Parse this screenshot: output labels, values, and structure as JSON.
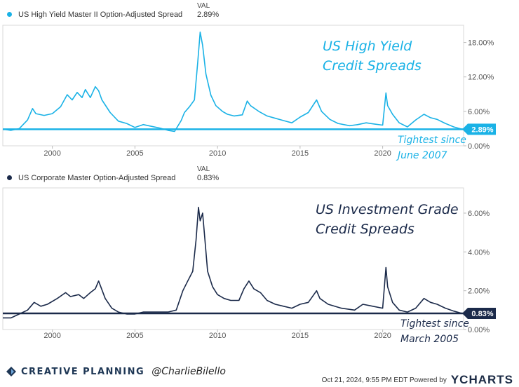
{
  "chart_data": [
    {
      "type": "line",
      "series_name": "US High Yield Master II Option-Adjusted Spread",
      "val_header": "VAL",
      "current_value": "2.89%",
      "current_value_num": 2.89,
      "color": "#1ab2e6",
      "annotation_title": [
        "US High Yield",
        "Credit Spreads"
      ],
      "annotation_note": [
        "Tightest since",
        "June 2007"
      ],
      "x_ticks": [
        "2000",
        "2005",
        "2010",
        "2015",
        "2020"
      ],
      "y_ticks": [
        "18.00%",
        "12.00%",
        "6.00%",
        "0.00%"
      ],
      "y_tick_values": [
        18,
        12,
        6,
        0
      ],
      "ylim": [
        0,
        21
      ],
      "xlim": [
        1997.0,
        2024.9
      ],
      "x": [
        1997.0,
        1997.5,
        1998.0,
        1998.5,
        1998.8,
        1999.0,
        1999.5,
        2000.0,
        2000.5,
        2000.9,
        2001.2,
        2001.5,
        2001.8,
        2002.0,
        2002.3,
        2002.6,
        2002.8,
        2003.0,
        2003.5,
        2004.0,
        2004.5,
        2005.0,
        2005.5,
        2006.0,
        2006.5,
        2007.0,
        2007.4,
        2007.8,
        2008.0,
        2008.3,
        2008.6,
        2008.8,
        2008.95,
        2009.1,
        2009.3,
        2009.6,
        2009.9,
        2010.3,
        2010.6,
        2011.0,
        2011.5,
        2011.8,
        2012.0,
        2012.5,
        2013.0,
        2013.5,
        2014.0,
        2014.5,
        2015.0,
        2015.5,
        2016.0,
        2016.3,
        2016.8,
        2017.3,
        2018.0,
        2018.5,
        2019.0,
        2019.5,
        2020.0,
        2020.2,
        2020.3,
        2020.6,
        2021.0,
        2021.5,
        2022.0,
        2022.5,
        2022.9,
        2023.3,
        2023.8,
        2024.3,
        2024.8
      ],
      "y": [
        2.9,
        2.7,
        3.0,
        4.5,
        6.5,
        5.6,
        5.3,
        5.6,
        6.8,
        8.9,
        8.0,
        9.3,
        8.4,
        9.8,
        8.4,
        10.3,
        9.6,
        8.0,
        5.8,
        4.3,
        3.9,
        3.2,
        3.7,
        3.4,
        3.1,
        2.7,
        2.5,
        4.4,
        5.8,
        6.8,
        8.0,
        14.5,
        19.8,
        17.5,
        12.5,
        8.8,
        7.0,
        6.0,
        5.5,
        5.2,
        5.4,
        7.8,
        7.0,
        6.0,
        5.2,
        4.8,
        4.4,
        4.0,
        5.0,
        5.8,
        8.0,
        6.0,
        4.6,
        3.9,
        3.5,
        3.7,
        4.0,
        3.8,
        3.6,
        9.2,
        7.0,
        5.5,
        4.0,
        3.3,
        4.5,
        5.5,
        4.9,
        4.6,
        3.9,
        3.3,
        2.89
      ]
    },
    {
      "type": "line",
      "series_name": "US Corporate Master Option-Adjusted Spread",
      "val_header": "VAL",
      "current_value": "0.83%",
      "current_value_num": 0.83,
      "color": "#1b2a4a",
      "annotation_title": [
        "US Investment Grade",
        "Credit Spreads"
      ],
      "annotation_note": [
        "Tightest since",
        "March 2005"
      ],
      "x_ticks": [
        "2000",
        "2005",
        "2010",
        "2015",
        "2020"
      ],
      "y_ticks": [
        "6.00%",
        "4.00%",
        "2.00%",
        "0.00%"
      ],
      "y_tick_values": [
        6,
        4,
        2,
        0
      ],
      "ylim": [
        0,
        7.3
      ],
      "xlim": [
        1997.0,
        2024.9
      ],
      "x": [
        1997.0,
        1997.5,
        1998.0,
        1998.5,
        1998.9,
        1999.3,
        1999.7,
        2000.3,
        2000.8,
        2001.1,
        2001.6,
        2001.9,
        2002.3,
        2002.6,
        2002.8,
        2003.2,
        2003.6,
        2004.0,
        2004.5,
        2005.0,
        2005.5,
        2006.0,
        2006.5,
        2007.0,
        2007.5,
        2007.9,
        2008.2,
        2008.5,
        2008.7,
        2008.85,
        2008.95,
        2009.1,
        2009.2,
        2009.4,
        2009.7,
        2010.0,
        2010.4,
        2010.8,
        2011.3,
        2011.6,
        2011.9,
        2012.2,
        2012.6,
        2013.0,
        2013.5,
        2014.0,
        2014.5,
        2015.0,
        2015.5,
        2016.0,
        2016.2,
        2016.7,
        2017.5,
        2018.3,
        2018.8,
        2019.4,
        2020.0,
        2020.2,
        2020.3,
        2020.6,
        2021.0,
        2021.5,
        2022.0,
        2022.5,
        2022.9,
        2023.3,
        2023.8,
        2024.3,
        2024.8
      ],
      "y": [
        0.6,
        0.6,
        0.8,
        1.0,
        1.4,
        1.2,
        1.3,
        1.6,
        1.9,
        1.7,
        1.8,
        1.6,
        1.9,
        2.1,
        2.5,
        1.6,
        1.1,
        0.9,
        0.8,
        0.8,
        0.9,
        0.9,
        0.9,
        0.9,
        1.0,
        2.0,
        2.5,
        3.0,
        4.6,
        6.3,
        5.6,
        6.0,
        5.0,
        3.0,
        2.2,
        1.8,
        1.6,
        1.5,
        1.5,
        2.1,
        2.5,
        2.1,
        1.9,
        1.5,
        1.3,
        1.2,
        1.1,
        1.3,
        1.4,
        2.0,
        1.6,
        1.3,
        1.1,
        1.0,
        1.3,
        1.2,
        1.1,
        3.2,
        2.2,
        1.4,
        1.0,
        0.9,
        1.1,
        1.6,
        1.4,
        1.3,
        1.1,
        0.95,
        0.83
      ]
    }
  ],
  "footer": {
    "brand": "CREATIVE PLANNING",
    "handle": "@CharlieBilello",
    "timestamp": "Oct 21, 2024, 9:55 PM EDT Powered by",
    "ycharts": "YCHARTS"
  }
}
